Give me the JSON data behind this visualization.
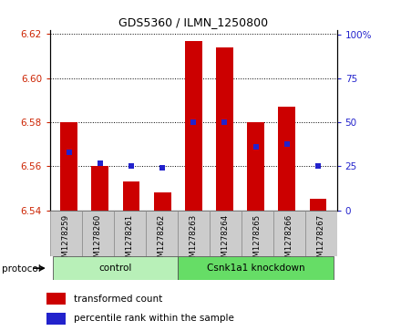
{
  "title": "GDS5360 / ILMN_1250800",
  "samples": [
    "GSM1278259",
    "GSM1278260",
    "GSM1278261",
    "GSM1278262",
    "GSM1278263",
    "GSM1278264",
    "GSM1278265",
    "GSM1278266",
    "GSM1278267"
  ],
  "red_values": [
    6.58,
    6.56,
    6.553,
    6.548,
    6.617,
    6.614,
    6.58,
    6.587,
    6.545
  ],
  "blue_percentiles": [
    33,
    27,
    25,
    24,
    50,
    50,
    36,
    38,
    25
  ],
  "ylim_left": [
    6.54,
    6.622
  ],
  "ylim_right": [
    0,
    103
  ],
  "yticks_left": [
    6.54,
    6.56,
    6.58,
    6.6,
    6.62
  ],
  "yticks_right": [
    0,
    25,
    50,
    75,
    100
  ],
  "ytick_labels_right": [
    "0",
    "25",
    "50",
    "75",
    "100%"
  ],
  "base_value": 6.54,
  "control_samples": 4,
  "protocol_label": "protocol",
  "group1_label": "control",
  "group2_label": "Csnk1a1 knockdown",
  "bar_color": "#cc0000",
  "dot_color": "#2222cc",
  "control_bg": "#b8f0b8",
  "knockdown_bg": "#66dd66",
  "sample_bg": "#cccccc",
  "bar_width": 0.55,
  "left_tick_color": "#cc2200",
  "right_tick_color": "#2222cc",
  "legend_red_label": "transformed count",
  "legend_blue_label": "percentile rank within the sample"
}
